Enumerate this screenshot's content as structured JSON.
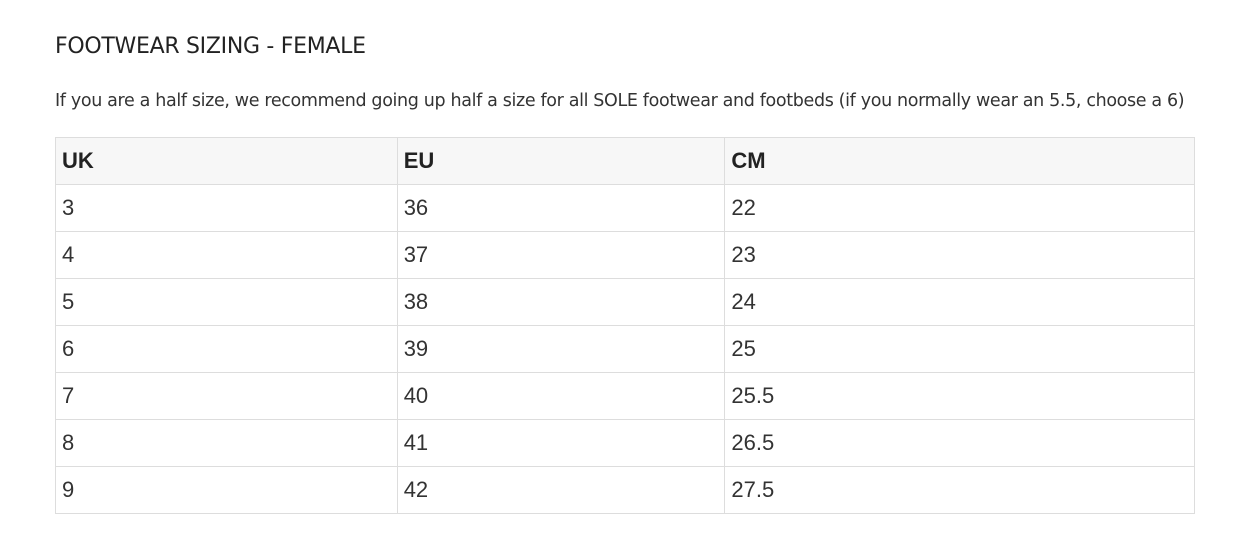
{
  "heading": "FOOTWEAR SIZING - FEMALE",
  "note": "If you are a half size, we recommend going up half a size for all SOLE footwear and footbeds (if you normally wear an 5.5, choose a 6)",
  "table": {
    "headers": [
      "UK",
      "EU",
      "CM"
    ],
    "rows": [
      [
        "3",
        "36",
        "22"
      ],
      [
        "4",
        "37",
        "23"
      ],
      [
        "5",
        "38",
        "24"
      ],
      [
        "6",
        "39",
        "25"
      ],
      [
        "7",
        "40",
        "25.5"
      ],
      [
        "8",
        "41",
        "26.5"
      ],
      [
        "9",
        "42",
        "27.5"
      ]
    ]
  },
  "colors": {
    "border": "#dddddd",
    "header_bg": "#f7f7f7",
    "text": "#333333"
  }
}
